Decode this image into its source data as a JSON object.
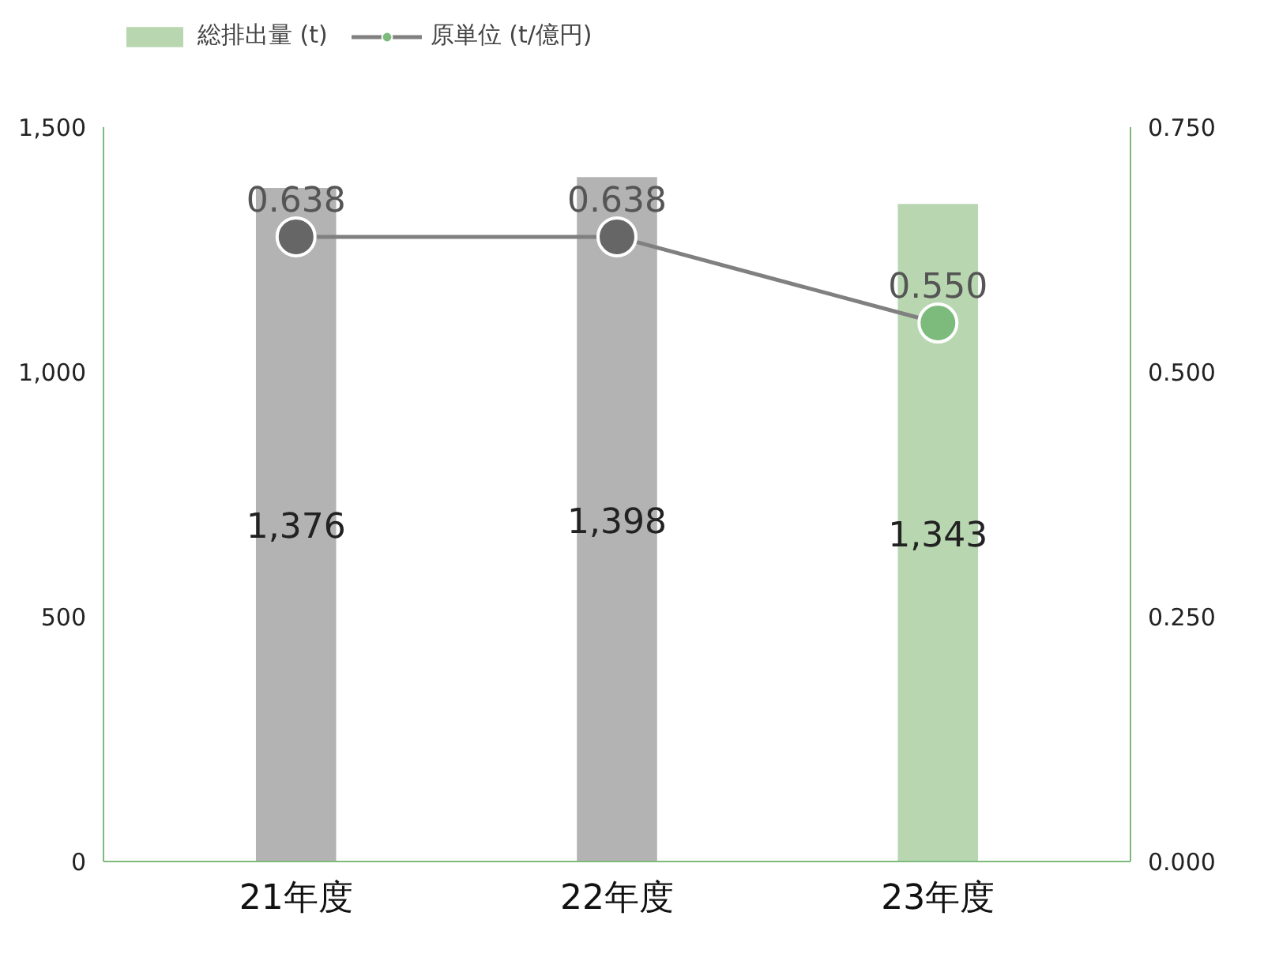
{
  "chart_data": {
    "type": "bar",
    "categories": [
      "21年度",
      "22年度",
      "23年度"
    ],
    "series": [
      {
        "name": "総排出量 (t)",
        "color": "#b8d7b0",
        "colors": [
          "#b3b3b3",
          "#b3b3b3",
          "#b8d7b0"
        ],
        "values": [
          1376,
          1398,
          1343
        ],
        "value_labels": [
          "1,376",
          "1,398",
          "1,343"
        ]
      },
      {
        "name": "原単位 (t/億円)",
        "type": "line",
        "axis": "y2",
        "color": "#808080",
        "colors": [
          "#666666",
          "#666666",
          "#7dbb7d"
        ],
        "values": [
          0.638,
          0.638,
          0.55
        ],
        "value_labels": [
          "0.638",
          "0.638",
          "0.550"
        ]
      }
    ],
    "ylim": [
      0,
      1500
    ],
    "yticks": [
      0,
      {
        "value": 500,
        "label": "500"
      },
      {
        "value": 1000,
        "label": "1,000"
      },
      {
        "value": 1500,
        "label": "1,500"
      }
    ],
    "y2lim": [
      0,
      0.75
    ],
    "y2ticks": [
      {
        "value": 0,
        "label": "0.000"
      },
      {
        "value": 0.25,
        "label": "0.250"
      },
      {
        "value": 0.5,
        "label": "0.500"
      },
      {
        "value": 0.75,
        "label": "0.750"
      }
    ],
    "grid": false,
    "legend": "top left",
    "marker": "circle",
    "line_style": "solid"
  }
}
